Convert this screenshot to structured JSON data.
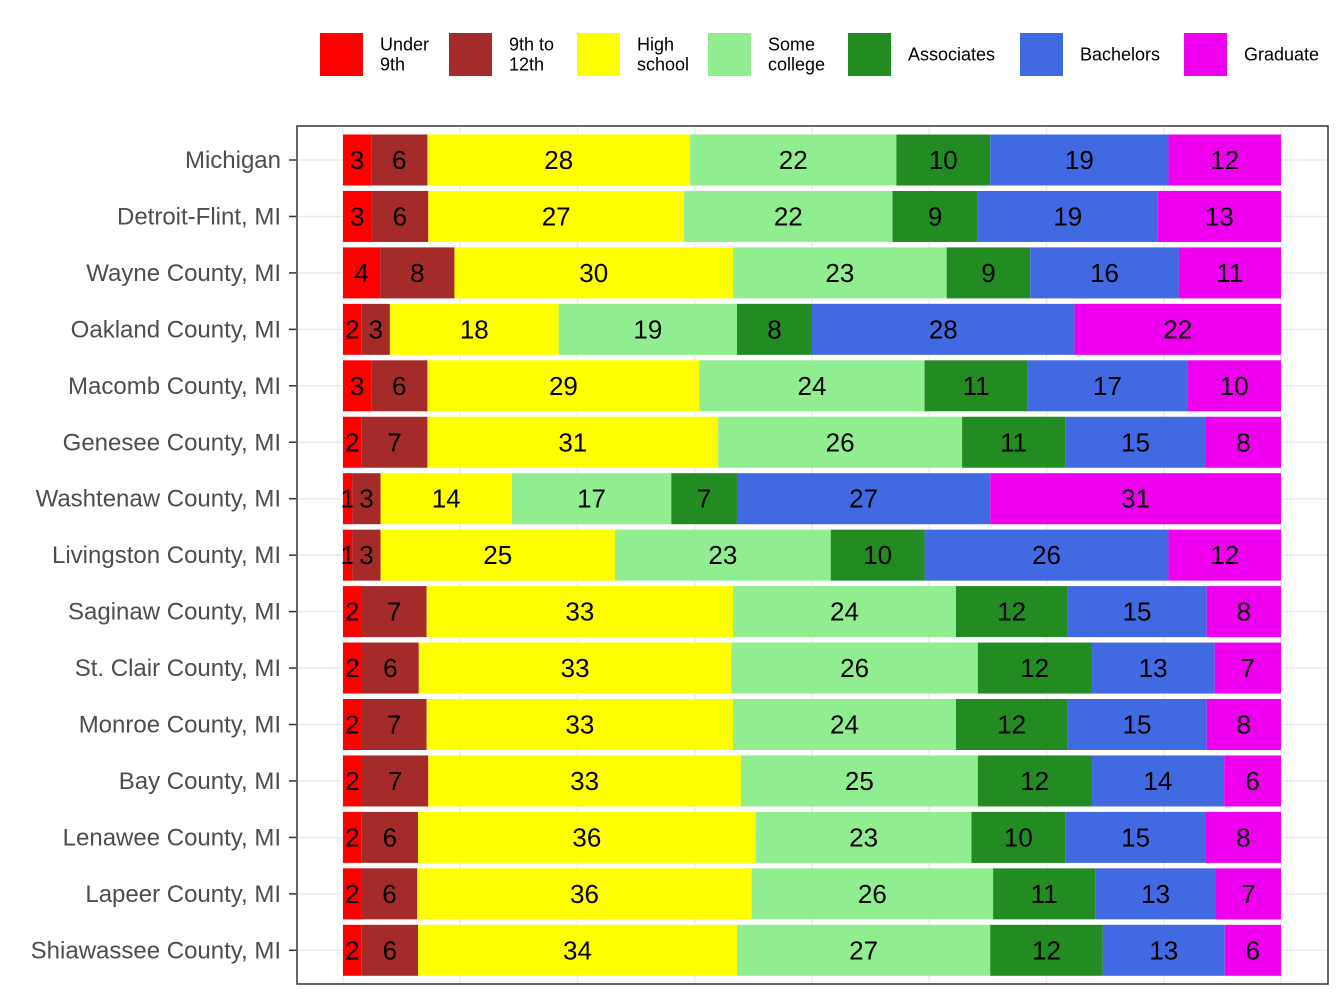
{
  "chart_data": {
    "type": "bar",
    "orientation": "horizontal",
    "stacked": true,
    "percent_stacked": true,
    "title": "",
    "xlabel": "",
    "ylabel": "",
    "xlim": [
      0,
      100
    ],
    "grid": true,
    "legend_position": "top",
    "categories": [
      "Michigan",
      "Detroit-Flint, MI",
      "Wayne County, MI",
      "Oakland County, MI",
      "Macomb County, MI",
      "Genesee County, MI",
      "Washtenaw County, MI",
      "Livingston County, MI",
      "Saginaw County, MI",
      "St. Clair County, MI",
      "Monroe County, MI",
      "Bay County, MI",
      "Lenawee County, MI",
      "Lapeer County, MI",
      "Shiawassee County, MI"
    ],
    "series": [
      {
        "name": "Under\n9th",
        "color": "#ff0000",
        "values": [
          3,
          3,
          4,
          2,
          3,
          2,
          1,
          1,
          2,
          2,
          2,
          2,
          2,
          2,
          2
        ]
      },
      {
        "name": "9th to\n12th",
        "color": "#a52a2a",
        "values": [
          6,
          6,
          8,
          3,
          6,
          7,
          3,
          3,
          7,
          6,
          7,
          7,
          6,
          6,
          6
        ]
      },
      {
        "name": "High\nschool",
        "color": "#ffff00",
        "values": [
          28,
          27,
          30,
          18,
          29,
          31,
          14,
          25,
          33,
          33,
          33,
          33,
          36,
          36,
          34
        ]
      },
      {
        "name": "Some\ncollege",
        "color": "#90ee90",
        "values": [
          22,
          22,
          23,
          19,
          24,
          26,
          17,
          23,
          24,
          26,
          24,
          25,
          23,
          26,
          27
        ]
      },
      {
        "name": "Associates",
        "color": "#228b22",
        "values": [
          10,
          9,
          9,
          8,
          11,
          11,
          7,
          10,
          12,
          12,
          12,
          12,
          10,
          11,
          12
        ]
      },
      {
        "name": "Bachelors",
        "color": "#4169e1",
        "values": [
          19,
          19,
          16,
          28,
          17,
          15,
          27,
          26,
          15,
          13,
          15,
          14,
          15,
          13,
          13
        ]
      },
      {
        "name": "Graduate",
        "color": "#ee00ee",
        "values": [
          12,
          13,
          11,
          22,
          10,
          8,
          31,
          12,
          8,
          7,
          8,
          6,
          8,
          7,
          6
        ]
      }
    ]
  }
}
